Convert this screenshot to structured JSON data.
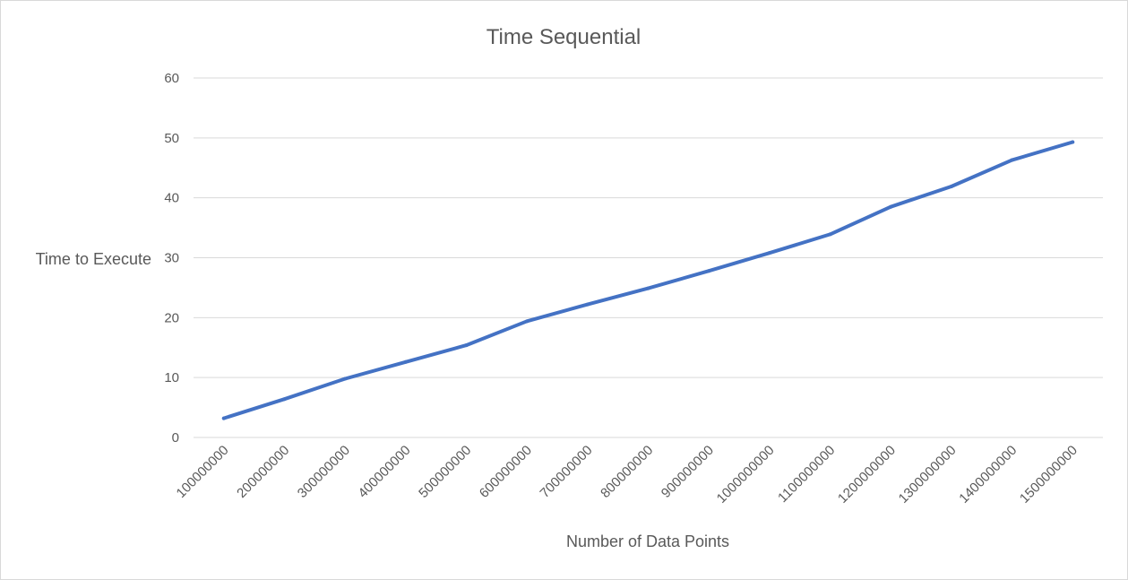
{
  "chart_data": {
    "type": "line",
    "title": "Time Sequential",
    "xlabel": "Number of Data Points",
    "ylabel": "Time to Execute",
    "categories": [
      "100000000",
      "200000000",
      "300000000",
      "400000000",
      "500000000",
      "600000000",
      "700000000",
      "800000000",
      "900000000",
      "1000000000",
      "1100000000",
      "1200000000",
      "1300000000",
      "1400000000",
      "1500000000"
    ],
    "series": [
      {
        "color": "#4472c4",
        "values": [
          3.2,
          6.4,
          9.8,
          12.6,
          15.4,
          19.4,
          22.2,
          24.9,
          27.8,
          30.8,
          33.9,
          38.5,
          41.9,
          46.3,
          49.3
        ]
      }
    ],
    "yticks": [
      "0",
      "10",
      "20",
      "30",
      "40",
      "50",
      "60"
    ],
    "ylim": [
      0,
      60
    ],
    "grid": "horizontal",
    "legend": "none"
  }
}
